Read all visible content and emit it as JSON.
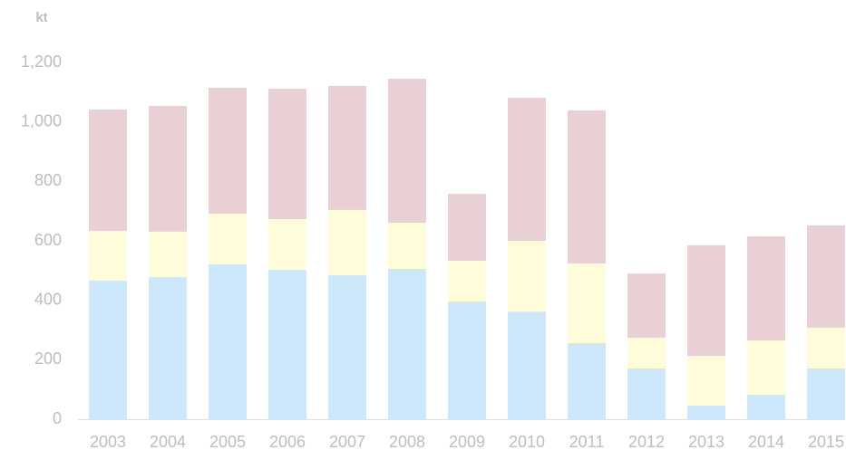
{
  "chart_data": {
    "type": "stacked_bar",
    "y_label": "kt",
    "categories": [
      "2003",
      "2004",
      "2005",
      "2006",
      "2007",
      "2008",
      "2009",
      "2010",
      "2011",
      "2012",
      "2013",
      "2014",
      "2015"
    ],
    "series": [
      {
        "color": "#cde8fa",
        "values": [
          466,
          478,
          521,
          503,
          484,
          506,
          396,
          362,
          256,
          171,
          46,
          82,
          171
        ]
      },
      {
        "color": "#fffdd9",
        "values": [
          168,
          153,
          170,
          170,
          220,
          155,
          137,
          238,
          268,
          103,
          167,
          183,
          137
        ]
      },
      {
        "color": "#e8d0d5",
        "values": [
          408,
          423,
          424,
          439,
          417,
          484,
          225,
          481,
          515,
          216,
          372,
          350,
          344
        ]
      }
    ],
    "ylim": [
      0,
      1200
    ],
    "yticks": [
      0,
      200,
      400,
      600,
      800,
      {
        "value": 1000,
        "label": "1,000"
      },
      {
        "value": 1200,
        "label": "1,200"
      }
    ]
  }
}
